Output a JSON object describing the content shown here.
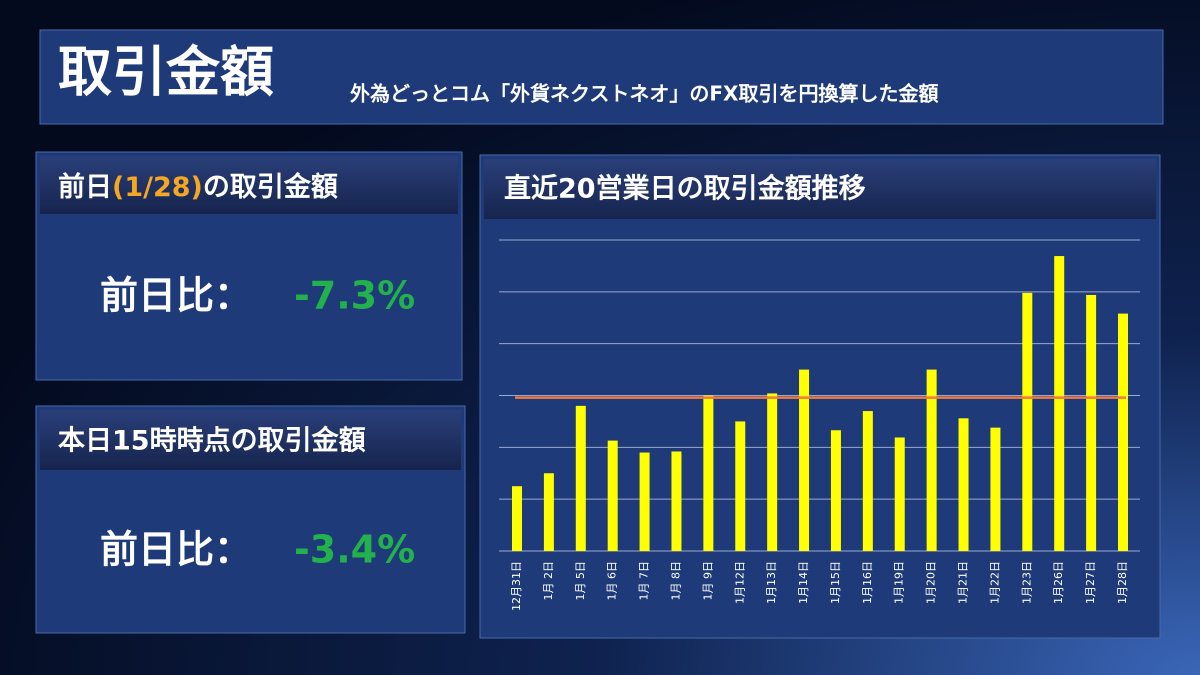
{
  "header": {
    "title": "取引金額",
    "subtitle": "外為どっとコム「外貨ネクストネオ」のFX取引を円換算した金額"
  },
  "panels": [
    {
      "title_parts": [
        "前日",
        "(1/28)",
        "の取引金額"
      ],
      "label": "前日比：",
      "value": "-7.3%"
    },
    {
      "title_parts": [
        "本日15時時点の取引金額"
      ],
      "label": "前日比：",
      "value": "-3.4%"
    }
  ],
  "chart_data": {
    "type": "bar",
    "title": "直近20営業日の取引金額推移",
    "categories": [
      "12月31日",
      "1月 2日",
      "1月 5日",
      "1月 6日",
      "1月 7日",
      "1月 8日",
      "1月 9日",
      "1月12日",
      "1月13日",
      "1月14日",
      "1月15日",
      "1月16日",
      "1月19日",
      "1月20日",
      "1月21日",
      "1月22日",
      "1月23日",
      "1月26日",
      "1月27日",
      "1月28日"
    ],
    "values": [
      1.25,
      1.5,
      2.8,
      2.13,
      1.9,
      1.92,
      3.0,
      2.5,
      3.04,
      3.5,
      2.33,
      2.7,
      2.19,
      3.5,
      2.56,
      2.38,
      4.98,
      5.69,
      4.94,
      4.58
    ],
    "color": "#ffff00",
    "reference_line": {
      "value": 2.96,
      "color": "#f07a40"
    },
    "ylim": [
      0,
      6
    ],
    "yticks": [
      0,
      1,
      2,
      3,
      4,
      5,
      6
    ],
    "grid": true
  }
}
